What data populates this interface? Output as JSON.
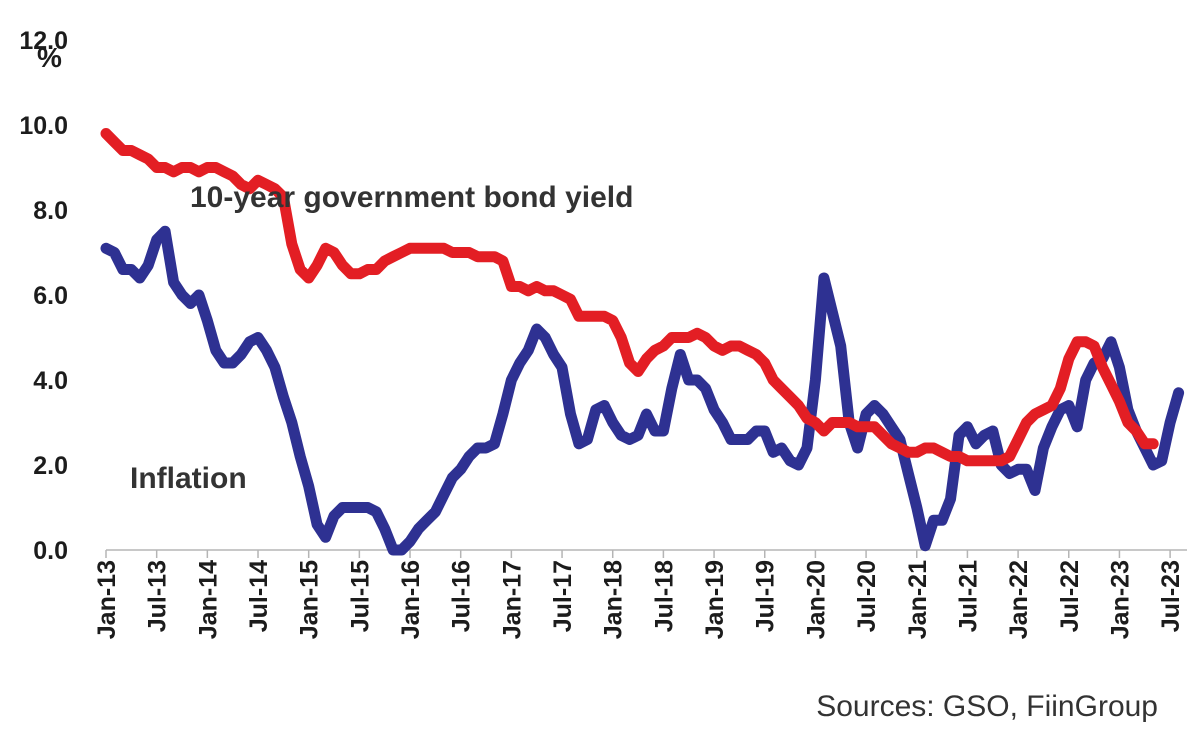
{
  "chart_data": {
    "type": "line",
    "title": "",
    "xlabel": "",
    "ylabel": "%",
    "ylim": [
      0,
      12
    ],
    "y_ticks": [
      "0.0",
      "2.0",
      "4.0",
      "6.0",
      "8.0",
      "10.0",
      "12.0"
    ],
    "x_tick_labels": [
      "Jan-13",
      "Jul-13",
      "Jan-14",
      "Jul-14",
      "Jan-15",
      "Jul-15",
      "Jan-16",
      "Jul-16",
      "Jan-17",
      "Jul-17",
      "Jan-18",
      "Jul-18",
      "Jan-19",
      "Jul-19",
      "Jan-20",
      "Jul-20",
      "Jan-21",
      "Jul-21",
      "Jan-22",
      "Jul-22",
      "Jan-23",
      "Jul-23"
    ],
    "x_range_months": [
      0,
      128
    ],
    "grid": false,
    "legend": "inline annotations",
    "annotations": {
      "bond": "10-year government bond yield",
      "inflation": "Inflation"
    },
    "series": [
      {
        "name": "10-year government bond yield",
        "color": "#e31e24",
        "points": [
          [
            0,
            9.8
          ],
          [
            1,
            9.6
          ],
          [
            2,
            9.4
          ],
          [
            3,
            9.4
          ],
          [
            4,
            9.3
          ],
          [
            5,
            9.2
          ],
          [
            6,
            9.0
          ],
          [
            7,
            9.0
          ],
          [
            8,
            8.9
          ],
          [
            9,
            9.0
          ],
          [
            10,
            9.0
          ],
          [
            11,
            8.9
          ],
          [
            12,
            9.0
          ],
          [
            13,
            9.0
          ],
          [
            14,
            8.9
          ],
          [
            15,
            8.8
          ],
          [
            16,
            8.6
          ],
          [
            17,
            8.5
          ],
          [
            18,
            8.7
          ],
          [
            19,
            8.6
          ],
          [
            20,
            8.5
          ],
          [
            21,
            8.3
          ],
          [
            22,
            7.2
          ],
          [
            23,
            6.6
          ],
          [
            24,
            6.4
          ],
          [
            25,
            6.7
          ],
          [
            26,
            7.1
          ],
          [
            27,
            7.0
          ],
          [
            28,
            6.7
          ],
          [
            29,
            6.5
          ],
          [
            30,
            6.5
          ],
          [
            31,
            6.6
          ],
          [
            32,
            6.6
          ],
          [
            33,
            6.8
          ],
          [
            34,
            6.9
          ],
          [
            35,
            7.0
          ],
          [
            36,
            7.1
          ],
          [
            37,
            7.1
          ],
          [
            38,
            7.1
          ],
          [
            39,
            7.1
          ],
          [
            40,
            7.1
          ],
          [
            41,
            7.0
          ],
          [
            42,
            7.0
          ],
          [
            43,
            7.0
          ],
          [
            44,
            6.9
          ],
          [
            45,
            6.9
          ],
          [
            46,
            6.9
          ],
          [
            47,
            6.8
          ],
          [
            48,
            6.2
          ],
          [
            49,
            6.2
          ],
          [
            50,
            6.1
          ],
          [
            51,
            6.2
          ],
          [
            52,
            6.1
          ],
          [
            53,
            6.1
          ],
          [
            54,
            6.0
          ],
          [
            55,
            5.9
          ],
          [
            56,
            5.5
          ],
          [
            57,
            5.5
          ],
          [
            58,
            5.5
          ],
          [
            59,
            5.5
          ],
          [
            60,
            5.4
          ],
          [
            61,
            5.0
          ],
          [
            62,
            4.4
          ],
          [
            63,
            4.2
          ],
          [
            64,
            4.5
          ],
          [
            65,
            4.7
          ],
          [
            66,
            4.8
          ],
          [
            67,
            5.0
          ],
          [
            68,
            5.0
          ],
          [
            69,
            5.0
          ],
          [
            70,
            5.1
          ],
          [
            71,
            5.0
          ],
          [
            72,
            4.8
          ],
          [
            73,
            4.7
          ],
          [
            74,
            4.8
          ],
          [
            75,
            4.8
          ],
          [
            76,
            4.7
          ],
          [
            77,
            4.6
          ],
          [
            78,
            4.4
          ],
          [
            79,
            4.0
          ],
          [
            80,
            3.8
          ],
          [
            81,
            3.6
          ],
          [
            82,
            3.4
          ],
          [
            83,
            3.1
          ],
          [
            84,
            3.0
          ],
          [
            85,
            2.8
          ],
          [
            86,
            3.0
          ],
          [
            87,
            3.0
          ],
          [
            88,
            3.0
          ],
          [
            89,
            2.9
          ],
          [
            90,
            2.9
          ],
          [
            91,
            2.9
          ],
          [
            92,
            2.7
          ],
          [
            93,
            2.5
          ],
          [
            94,
            2.4
          ],
          [
            95,
            2.3
          ],
          [
            96,
            2.3
          ],
          [
            97,
            2.4
          ],
          [
            98,
            2.4
          ],
          [
            99,
            2.3
          ],
          [
            100,
            2.2
          ],
          [
            101,
            2.2
          ],
          [
            102,
            2.1
          ],
          [
            103,
            2.1
          ],
          [
            104,
            2.1
          ],
          [
            105,
            2.1
          ],
          [
            106,
            2.1
          ],
          [
            107,
            2.2
          ],
          [
            108,
            2.6
          ],
          [
            109,
            3.0
          ],
          [
            110,
            3.2
          ],
          [
            111,
            3.3
          ],
          [
            112,
            3.4
          ],
          [
            113,
            3.8
          ],
          [
            114,
            4.5
          ],
          [
            115,
            4.9
          ],
          [
            116,
            4.9
          ],
          [
            117,
            4.8
          ],
          [
            118,
            4.3
          ],
          [
            119,
            3.9
          ],
          [
            120,
            3.5
          ],
          [
            121,
            3.0
          ],
          [
            122,
            2.8
          ],
          [
            123,
            2.5
          ],
          [
            124,
            2.5
          ]
        ]
      },
      {
        "name": "Inflation",
        "color": "#2e3192",
        "points": [
          [
            0,
            7.1
          ],
          [
            1,
            7.0
          ],
          [
            2,
            6.6
          ],
          [
            3,
            6.6
          ],
          [
            4,
            6.4
          ],
          [
            5,
            6.7
          ],
          [
            6,
            7.3
          ],
          [
            7,
            7.5
          ],
          [
            8,
            6.3
          ],
          [
            9,
            6.0
          ],
          [
            10,
            5.8
          ],
          [
            11,
            6.0
          ],
          [
            12,
            5.4
          ],
          [
            13,
            4.7
          ],
          [
            14,
            4.4
          ],
          [
            15,
            4.4
          ],
          [
            16,
            4.6
          ],
          [
            17,
            4.9
          ],
          [
            18,
            5.0
          ],
          [
            19,
            4.7
          ],
          [
            20,
            4.3
          ],
          [
            21,
            3.6
          ],
          [
            22,
            3.0
          ],
          [
            23,
            2.2
          ],
          [
            24,
            1.5
          ],
          [
            25,
            0.6
          ],
          [
            26,
            0.3
          ],
          [
            27,
            0.8
          ],
          [
            28,
            1.0
          ],
          [
            29,
            1.0
          ],
          [
            30,
            1.0
          ],
          [
            31,
            1.0
          ],
          [
            32,
            0.9
          ],
          [
            33,
            0.5
          ],
          [
            34,
            0.0
          ],
          [
            35,
            0.0
          ],
          [
            36,
            0.2
          ],
          [
            37,
            0.5
          ],
          [
            38,
            0.7
          ],
          [
            39,
            0.9
          ],
          [
            40,
            1.3
          ],
          [
            41,
            1.7
          ],
          [
            42,
            1.9
          ],
          [
            43,
            2.2
          ],
          [
            44,
            2.4
          ],
          [
            45,
            2.4
          ],
          [
            46,
            2.5
          ],
          [
            47,
            3.2
          ],
          [
            48,
            4.0
          ],
          [
            49,
            4.4
          ],
          [
            50,
            4.7
          ],
          [
            51,
            5.2
          ],
          [
            52,
            5.0
          ],
          [
            53,
            4.6
          ],
          [
            54,
            4.3
          ],
          [
            55,
            3.2
          ],
          [
            56,
            2.5
          ],
          [
            57,
            2.6
          ],
          [
            58,
            3.3
          ],
          [
            59,
            3.4
          ],
          [
            60,
            3.0
          ],
          [
            61,
            2.7
          ],
          [
            62,
            2.6
          ],
          [
            63,
            2.7
          ],
          [
            64,
            3.2
          ],
          [
            65,
            2.8
          ],
          [
            66,
            2.8
          ],
          [
            67,
            3.8
          ],
          [
            68,
            4.6
          ],
          [
            69,
            4.0
          ],
          [
            70,
            4.0
          ],
          [
            71,
            3.8
          ],
          [
            72,
            3.3
          ],
          [
            73,
            3.0
          ],
          [
            74,
            2.6
          ],
          [
            75,
            2.6
          ],
          [
            76,
            2.6
          ],
          [
            77,
            2.8
          ],
          [
            78,
            2.8
          ],
          [
            79,
            2.3
          ],
          [
            80,
            2.4
          ],
          [
            81,
            2.1
          ],
          [
            82,
            2.0
          ],
          [
            83,
            2.4
          ],
          [
            84,
            4.0
          ],
          [
            85,
            6.4
          ],
          [
            86,
            5.6
          ],
          [
            87,
            4.8
          ],
          [
            88,
            3.0
          ],
          [
            89,
            2.4
          ],
          [
            90,
            3.2
          ],
          [
            91,
            3.4
          ],
          [
            92,
            3.2
          ],
          [
            93,
            2.9
          ],
          [
            94,
            2.6
          ],
          [
            95,
            1.8
          ],
          [
            96,
            1.0
          ],
          [
            97,
            0.1
          ],
          [
            98,
            0.7
          ],
          [
            99,
            0.7
          ],
          [
            100,
            1.2
          ],
          [
            101,
            2.7
          ],
          [
            102,
            2.9
          ],
          [
            103,
            2.5
          ],
          [
            104,
            2.7
          ],
          [
            105,
            2.8
          ],
          [
            106,
            2.0
          ],
          [
            107,
            1.8
          ],
          [
            108,
            1.9
          ],
          [
            109,
            1.9
          ],
          [
            110,
            1.4
          ],
          [
            111,
            2.4
          ],
          [
            112,
            2.9
          ],
          [
            113,
            3.3
          ],
          [
            114,
            3.4
          ],
          [
            115,
            2.9
          ],
          [
            116,
            4.0
          ],
          [
            117,
            4.4
          ],
          [
            118,
            4.5
          ],
          [
            119,
            4.9
          ],
          [
            120,
            4.3
          ],
          [
            121,
            3.3
          ],
          [
            122,
            2.8
          ],
          [
            123,
            2.4
          ],
          [
            124,
            2.0
          ],
          [
            125,
            2.1
          ],
          [
            126,
            3.0
          ],
          [
            127,
            3.7
          ]
        ]
      }
    ]
  },
  "source_note": "Sources: GSO, FiinGroup"
}
